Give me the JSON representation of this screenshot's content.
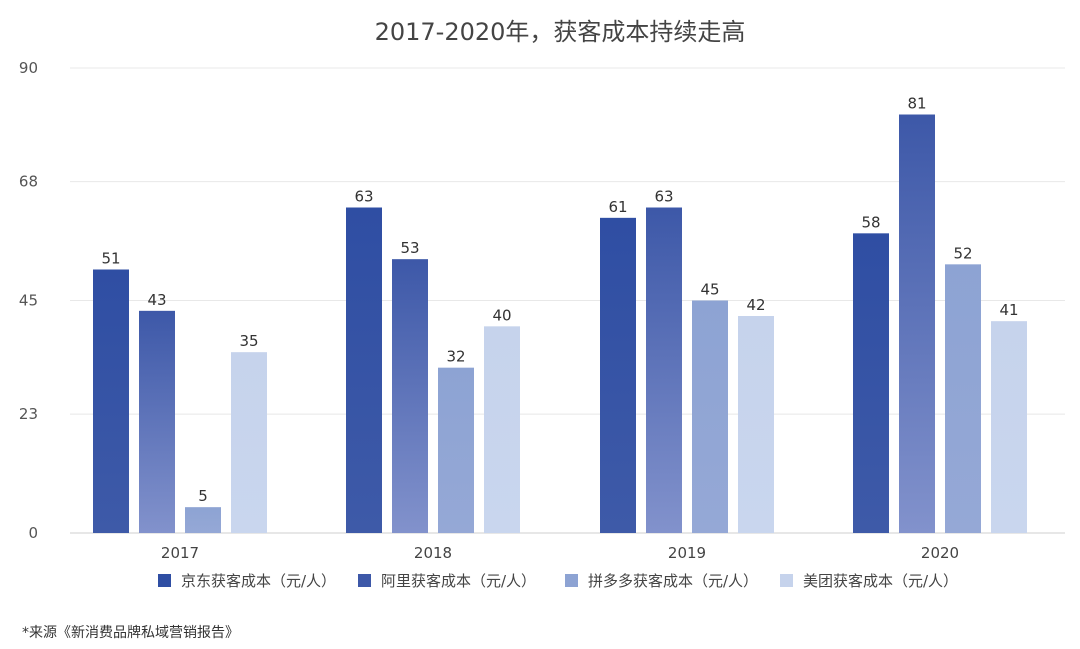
{
  "chart_data": {
    "type": "bar",
    "title": "2017-2020年，获客成本持续走高",
    "categories": [
      "2017",
      "2018",
      "2019",
      "2020"
    ],
    "series": [
      {
        "name": "京东获客成本（元/人）",
        "values": [
          51,
          63,
          61,
          58
        ],
        "color_top": "#2f4ea3",
        "color_bottom": "#3e5aa8"
      },
      {
        "name": "阿里获客成本（元/人）",
        "values": [
          43,
          53,
          63,
          81
        ],
        "color_top": "#3d58a8",
        "color_bottom": "#8292cc"
      },
      {
        "name": "拼多多获客成本（元/人）",
        "values": [
          5,
          32,
          45,
          52
        ],
        "color_top": "#8da3d3",
        "color_bottom": "#95a8d6"
      },
      {
        "name": "美团获客成本（元/人）",
        "values": [
          35,
          40,
          42,
          41
        ],
        "color_top": "#c6d3ec",
        "color_bottom": "#c9d6ee"
      }
    ],
    "y_ticks": [
      0,
      23,
      45,
      68,
      90
    ],
    "ylim": [
      0,
      90
    ],
    "grid": true,
    "legend_position": "bottom",
    "xlabel": "",
    "ylabel": ""
  },
  "source_note": "*来源《新消费品牌私域营销报告》"
}
